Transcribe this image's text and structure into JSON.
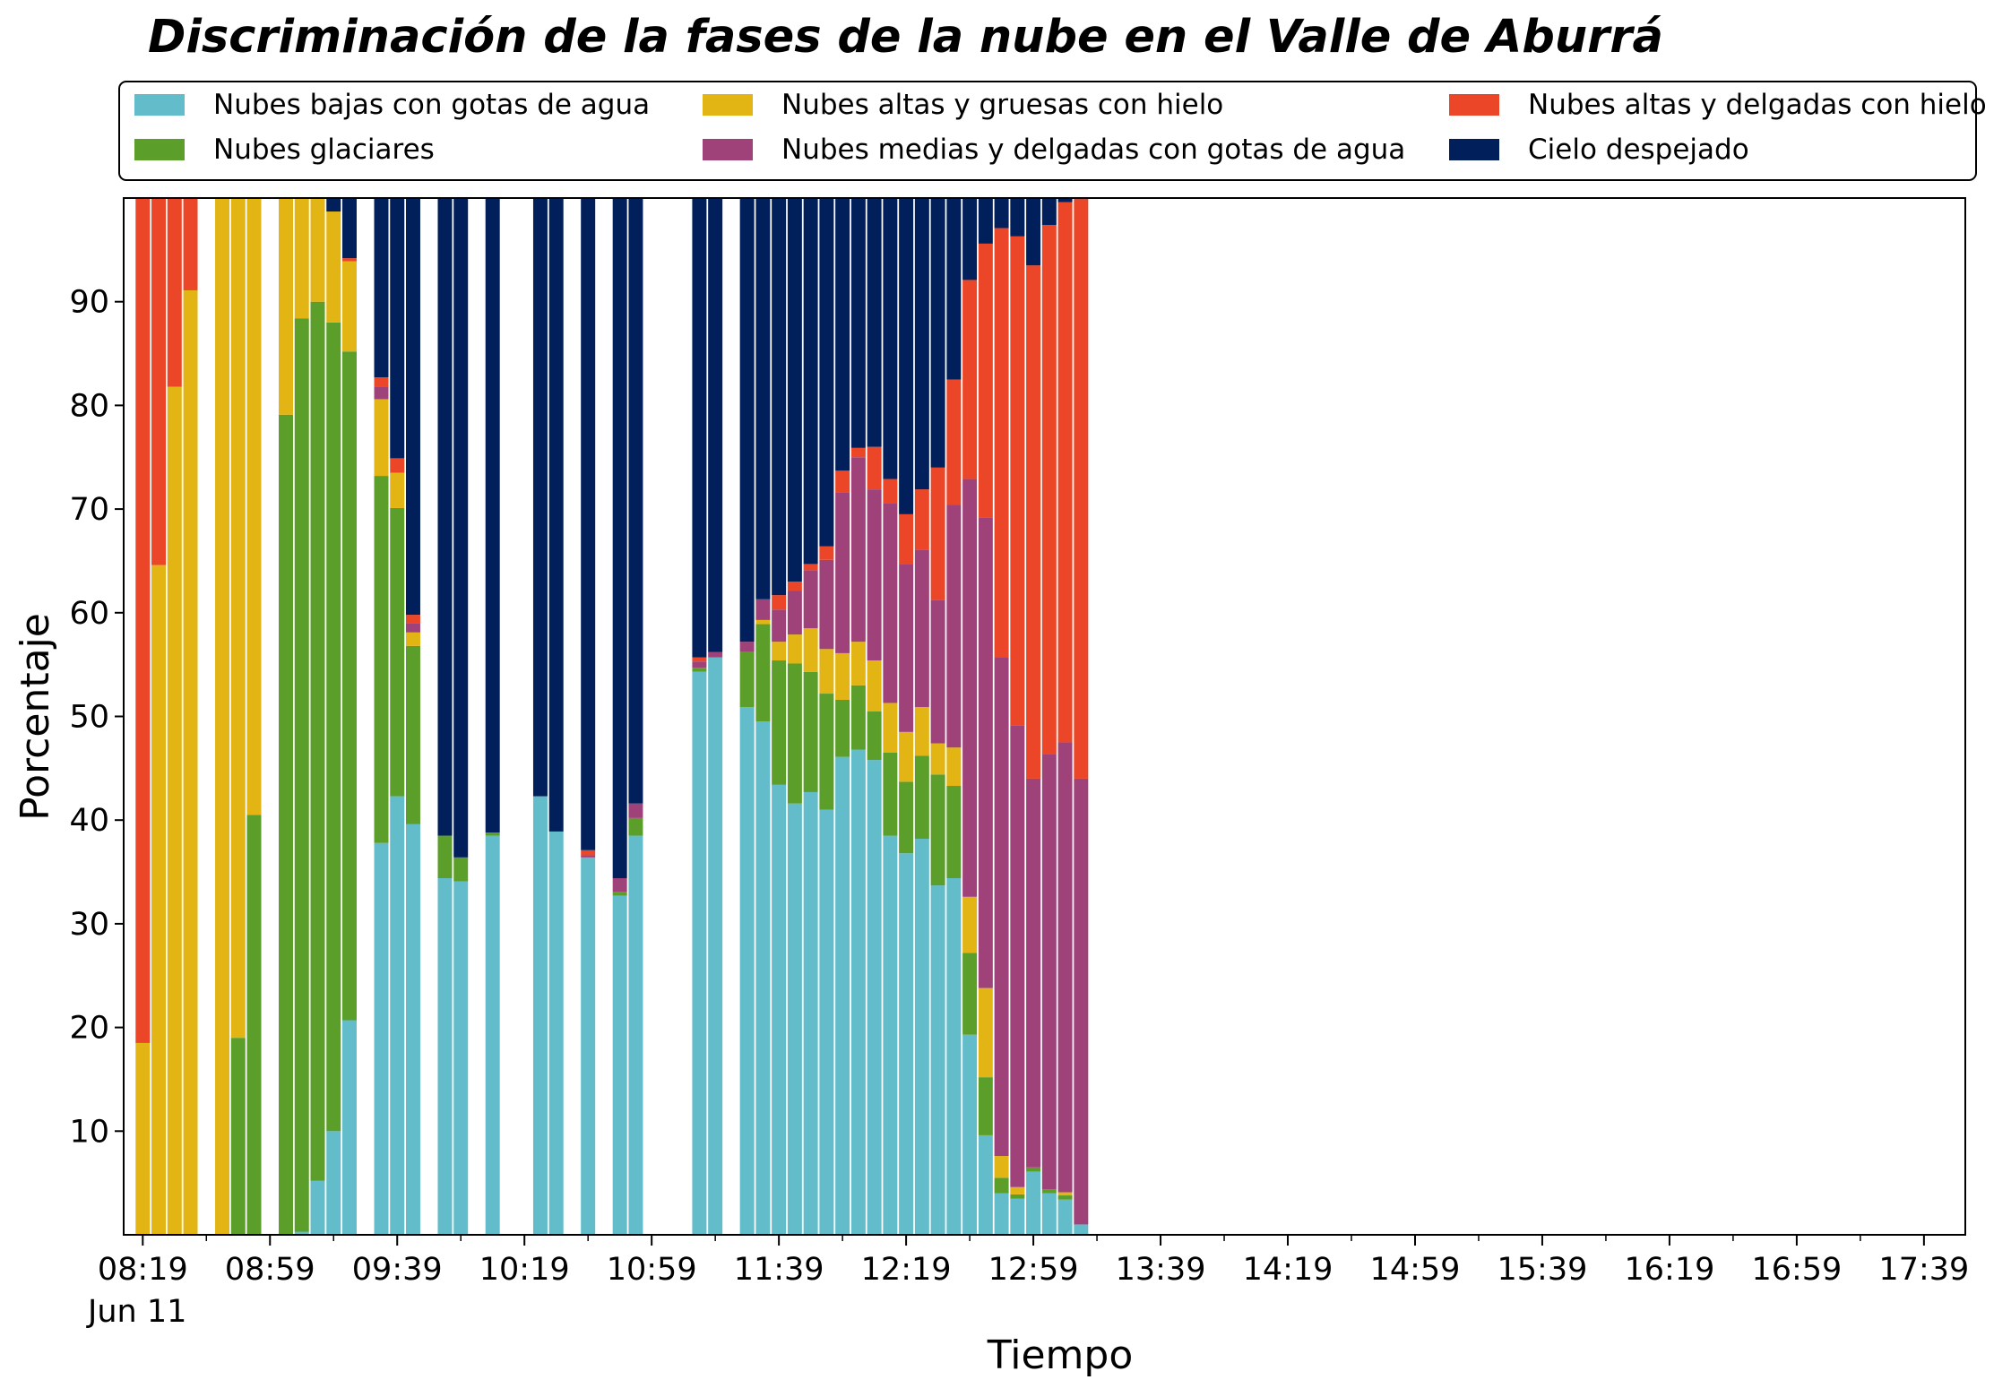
{
  "chart_data": {
    "type": "bar",
    "stacked": true,
    "title": "Discriminación de la fases de la nube en el Valle de Aburrá",
    "xlabel": "Tiempo",
    "ylabel": "Porcentaje",
    "x_date_label": "Jun 11",
    "ylim": [
      0,
      100
    ],
    "yticks": [
      10,
      20,
      30,
      40,
      50,
      60,
      70,
      80,
      90
    ],
    "xlim_minutes": [
      "08:13",
      "17:52"
    ],
    "bar_interval_minutes": 5,
    "xticks_major": [
      "08:19",
      "08:59",
      "09:39",
      "10:19",
      "10:59",
      "11:39",
      "12:19",
      "12:59",
      "13:39",
      "14:19",
      "14:59",
      "15:39",
      "16:19",
      "16:59",
      "17:39"
    ],
    "legend_position": "top",
    "grid": false,
    "colors": {
      "low_water": "#63bcc9",
      "glaciated": "#5b9e2a",
      "high_thick_ice": "#e2b515",
      "mid_thin_water": "#a0427a",
      "high_thin_ice": "#ec4628",
      "clear": "#011f5b"
    },
    "series": [
      {
        "key": "low_water",
        "name": "Nubes bajas con gotas de agua"
      },
      {
        "key": "glaciated",
        "name": "Nubes glaciares"
      },
      {
        "key": "high_thick_ice",
        "name": "Nubes altas y gruesas con hielo"
      },
      {
        "key": "mid_thin_water",
        "name": "Nubes medias y delgadas con gotas de agua"
      },
      {
        "key": "high_thin_ice",
        "name": "Nubes altas y delgadas con hielo"
      },
      {
        "key": "clear",
        "name": "Cielo despejado"
      }
    ],
    "bars": [
      {
        "time": "08:19",
        "low_water": 0,
        "glaciated": 0,
        "high_thick_ice": 18.5,
        "mid_thin_water": 0,
        "high_thin_ice": 81.5,
        "clear": 0
      },
      {
        "time": "08:24",
        "low_water": 0,
        "glaciated": 0,
        "high_thick_ice": 64.6,
        "mid_thin_water": 0,
        "high_thin_ice": 35.4,
        "clear": 0
      },
      {
        "time": "08:29",
        "low_water": 0,
        "glaciated": 0,
        "high_thick_ice": 81.8,
        "mid_thin_water": 0,
        "high_thin_ice": 18.2,
        "clear": 0
      },
      {
        "time": "08:34",
        "low_water": 0,
        "glaciated": 0,
        "high_thick_ice": 91.1,
        "mid_thin_water": 0,
        "high_thin_ice": 8.9,
        "clear": 0
      },
      {
        "time": "08:44",
        "low_water": 0,
        "glaciated": 0,
        "high_thick_ice": 100,
        "mid_thin_water": 0,
        "high_thin_ice": 0,
        "clear": 0
      },
      {
        "time": "08:49",
        "low_water": 0,
        "glaciated": 19.0,
        "high_thick_ice": 81.0,
        "mid_thin_water": 0,
        "high_thin_ice": 0,
        "clear": 0
      },
      {
        "time": "08:54",
        "low_water": 0,
        "glaciated": 40.5,
        "high_thick_ice": 59.5,
        "mid_thin_water": 0,
        "high_thin_ice": 0,
        "clear": 0
      },
      {
        "time": "09:04",
        "low_water": 0,
        "glaciated": 79.1,
        "high_thick_ice": 20.9,
        "mid_thin_water": 0,
        "high_thin_ice": 0,
        "clear": 0
      },
      {
        "time": "09:09",
        "low_water": 0.3,
        "glaciated": 88.1,
        "high_thick_ice": 11.6,
        "mid_thin_water": 0,
        "high_thin_ice": 0,
        "clear": 0
      },
      {
        "time": "09:14",
        "low_water": 5.2,
        "glaciated": 84.8,
        "high_thick_ice": 10.0,
        "mid_thin_water": 0,
        "high_thin_ice": 0,
        "clear": 0
      },
      {
        "time": "09:19",
        "low_water": 10.0,
        "glaciated": 78.0,
        "high_thick_ice": 10.7,
        "mid_thin_water": 0,
        "high_thin_ice": 0,
        "clear": 1.3
      },
      {
        "time": "09:24",
        "low_water": 20.7,
        "glaciated": 64.5,
        "high_thick_ice": 8.7,
        "mid_thin_water": 0,
        "high_thin_ice": 0.3,
        "clear": 5.8
      },
      {
        "time": "09:34",
        "low_water": 37.8,
        "glaciated": 35.4,
        "high_thick_ice": 7.4,
        "mid_thin_water": 1.2,
        "high_thin_ice": 0.9,
        "clear": 17.3
      },
      {
        "time": "09:39",
        "low_water": 42.3,
        "glaciated": 27.8,
        "high_thick_ice": 3.4,
        "mid_thin_water": 0,
        "high_thin_ice": 1.4,
        "clear": 25.1
      },
      {
        "time": "09:44",
        "low_water": 39.6,
        "glaciated": 17.2,
        "high_thick_ice": 1.3,
        "mid_thin_water": 0.9,
        "high_thin_ice": 0.8,
        "clear": 40.2
      },
      {
        "time": "09:54",
        "low_water": 34.4,
        "glaciated": 4.1,
        "high_thick_ice": 0,
        "mid_thin_water": 0,
        "high_thin_ice": 0,
        "clear": 61.5
      },
      {
        "time": "09:59",
        "low_water": 34.1,
        "glaciated": 2.3,
        "high_thick_ice": 0,
        "mid_thin_water": 0,
        "high_thin_ice": 0,
        "clear": 63.6
      },
      {
        "time": "10:09",
        "low_water": 38.5,
        "glaciated": 0.3,
        "high_thick_ice": 0,
        "mid_thin_water": 0,
        "high_thin_ice": 0,
        "clear": 61.2
      },
      {
        "time": "10:24",
        "low_water": 42.3,
        "glaciated": 0,
        "high_thick_ice": 0,
        "mid_thin_water": 0,
        "high_thin_ice": 0,
        "clear": 57.7
      },
      {
        "time": "10:29",
        "low_water": 38.9,
        "glaciated": 0,
        "high_thick_ice": 0,
        "mid_thin_water": 0,
        "high_thin_ice": 0,
        "clear": 61.1
      },
      {
        "time": "10:39",
        "low_water": 36.4,
        "glaciated": 0,
        "high_thick_ice": 0,
        "mid_thin_water": 0.2,
        "high_thin_ice": 0.5,
        "clear": 62.9
      },
      {
        "time": "10:49",
        "low_water": 32.7,
        "glaciated": 0.4,
        "high_thick_ice": 0,
        "mid_thin_water": 1.3,
        "high_thin_ice": 0,
        "clear": 65.6
      },
      {
        "time": "10:54",
        "low_water": 38.5,
        "glaciated": 1.7,
        "high_thick_ice": 0,
        "mid_thin_water": 1.4,
        "high_thin_ice": 0,
        "clear": 58.4
      },
      {
        "time": "11:14",
        "low_water": 54.3,
        "glaciated": 0.4,
        "high_thick_ice": 0,
        "mid_thin_water": 0.6,
        "high_thin_ice": 0.4,
        "clear": 44.3
      },
      {
        "time": "11:19",
        "low_water": 55.7,
        "glaciated": 0,
        "high_thick_ice": 0,
        "mid_thin_water": 0.5,
        "high_thin_ice": 0,
        "clear": 43.8
      },
      {
        "time": "11:29",
        "low_water": 50.9,
        "glaciated": 5.3,
        "high_thick_ice": 0,
        "mid_thin_water": 1.0,
        "high_thin_ice": 0,
        "clear": 42.8
      },
      {
        "time": "11:34",
        "low_water": 49.5,
        "glaciated": 9.4,
        "high_thick_ice": 0.4,
        "mid_thin_water": 2.0,
        "high_thin_ice": 0,
        "clear": 38.7
      },
      {
        "time": "11:39",
        "low_water": 43.4,
        "glaciated": 12.0,
        "high_thick_ice": 1.8,
        "mid_thin_water": 3.1,
        "high_thin_ice": 1.4,
        "clear": 38.3
      },
      {
        "time": "11:44",
        "low_water": 41.6,
        "glaciated": 13.5,
        "high_thick_ice": 2.8,
        "mid_thin_water": 4.2,
        "high_thin_ice": 0.9,
        "clear": 37.0
      },
      {
        "time": "11:49",
        "low_water": 42.7,
        "glaciated": 11.6,
        "high_thick_ice": 4.2,
        "mid_thin_water": 5.6,
        "high_thin_ice": 0.6,
        "clear": 35.3
      },
      {
        "time": "11:54",
        "low_water": 41.0,
        "glaciated": 11.2,
        "high_thick_ice": 4.3,
        "mid_thin_water": 8.6,
        "high_thin_ice": 1.3,
        "clear": 33.6
      },
      {
        "time": "11:59",
        "low_water": 46.1,
        "glaciated": 5.5,
        "high_thick_ice": 4.5,
        "mid_thin_water": 15.5,
        "high_thin_ice": 2.1,
        "clear": 26.3
      },
      {
        "time": "12:04",
        "low_water": 46.8,
        "glaciated": 6.2,
        "high_thick_ice": 4.2,
        "mid_thin_water": 17.8,
        "high_thin_ice": 0.9,
        "clear": 24.1
      },
      {
        "time": "12:09",
        "low_water": 45.8,
        "glaciated": 4.7,
        "high_thick_ice": 4.9,
        "mid_thin_water": 16.5,
        "high_thin_ice": 4.1,
        "clear": 24.0
      },
      {
        "time": "12:14",
        "low_water": 38.5,
        "glaciated": 8.0,
        "high_thick_ice": 4.8,
        "mid_thin_water": 19.3,
        "high_thin_ice": 2.3,
        "clear": 27.1
      },
      {
        "time": "12:19",
        "low_water": 36.8,
        "glaciated": 6.9,
        "high_thick_ice": 4.8,
        "mid_thin_water": 16.2,
        "high_thin_ice": 4.8,
        "clear": 30.5
      },
      {
        "time": "12:24",
        "low_water": 38.2,
        "glaciated": 8.0,
        "high_thick_ice": 4.7,
        "mid_thin_water": 15.2,
        "high_thin_ice": 5.8,
        "clear": 28.1
      },
      {
        "time": "12:29",
        "low_water": 33.7,
        "glaciated": 10.7,
        "high_thick_ice": 3.0,
        "mid_thin_water": 13.8,
        "high_thin_ice": 12.8,
        "clear": 26.0
      },
      {
        "time": "12:34",
        "low_water": 34.4,
        "glaciated": 8.9,
        "high_thick_ice": 3.7,
        "mid_thin_water": 23.4,
        "high_thin_ice": 12.1,
        "clear": 17.5
      },
      {
        "time": "12:39",
        "low_water": 19.3,
        "glaciated": 7.9,
        "high_thick_ice": 5.4,
        "mid_thin_water": 40.3,
        "high_thin_ice": 19.2,
        "clear": 7.9
      },
      {
        "time": "12:44",
        "low_water": 9.6,
        "glaciated": 5.6,
        "high_thick_ice": 8.6,
        "mid_thin_water": 45.4,
        "high_thin_ice": 26.4,
        "clear": 4.4
      },
      {
        "time": "12:49",
        "low_water": 4.0,
        "glaciated": 1.5,
        "high_thick_ice": 2.1,
        "mid_thin_water": 48.1,
        "high_thin_ice": 41.4,
        "clear": 2.9
      },
      {
        "time": "12:54",
        "low_water": 3.5,
        "glaciated": 0.4,
        "high_thick_ice": 0.7,
        "mid_thin_water": 44.5,
        "high_thin_ice": 47.2,
        "clear": 3.7
      },
      {
        "time": "12:59",
        "low_water": 6.1,
        "glaciated": 0.4,
        "high_thick_ice": 0,
        "mid_thin_water": 37.5,
        "high_thin_ice": 49.5,
        "clear": 6.5
      },
      {
        "time": "13:04",
        "low_water": 4.0,
        "glaciated": 0.4,
        "high_thick_ice": 0,
        "mid_thin_water": 42.0,
        "high_thin_ice": 51.0,
        "clear": 2.6
      },
      {
        "time": "13:09",
        "low_water": 3.4,
        "glaciated": 0.4,
        "high_thick_ice": 0.3,
        "mid_thin_water": 43.4,
        "high_thin_ice": 52.1,
        "clear": 0.4
      },
      {
        "time": "13:14",
        "low_water": 1.0,
        "glaciated": 0,
        "high_thick_ice": 0,
        "mid_thin_water": 43.0,
        "high_thin_ice": 55.9,
        "clear": 0.1
      }
    ]
  }
}
